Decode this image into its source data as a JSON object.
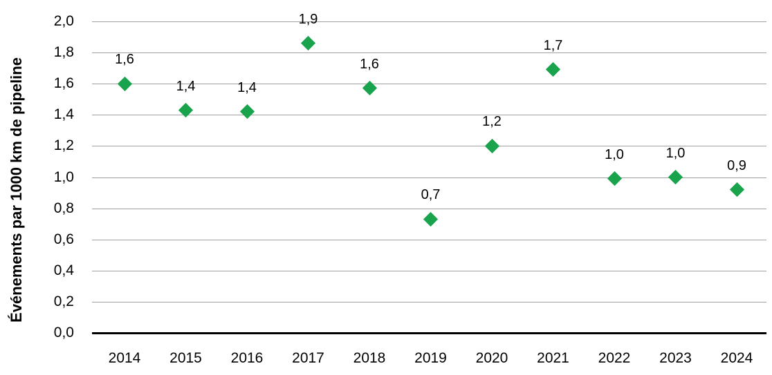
{
  "chart_data": {
    "type": "scatter",
    "title": "",
    "xlabel": "",
    "ylabel": "Événements par 1000 km de pipeline",
    "categories": [
      "2014",
      "2015",
      "2016",
      "2017",
      "2018",
      "2019",
      "2020",
      "2021",
      "2022",
      "2023",
      "2024"
    ],
    "series": [
      {
        "name": "Événements par 1000 km de pipeline",
        "values": [
          1.6,
          1.43,
          1.42,
          1.86,
          1.57,
          0.73,
          1.2,
          1.69,
          0.99,
          1.0,
          0.92
        ]
      }
    ],
    "point_labels": [
      "1,6",
      "1,4",
      "1,4",
      "1,9",
      "1,6",
      "0,7",
      "1,2",
      "1,7",
      "1,0",
      "1,0",
      "0,9"
    ],
    "ylim": [
      0.0,
      2.0
    ],
    "ytick_step": 0.2,
    "ytick_labels": [
      "0,0",
      "0,2",
      "0,4",
      "0,6",
      "0,8",
      "1,0",
      "1,2",
      "1,4",
      "1,6",
      "1,8",
      "2,0"
    ],
    "grid": true,
    "legend": "none",
    "decimal_separator": ",",
    "colors": {
      "marker": "#1aa34d",
      "gridline": "#a0a0a0",
      "axis": "#000000",
      "text": "#000000",
      "background": "#ffffff"
    },
    "marker_shape": "diamond"
  }
}
